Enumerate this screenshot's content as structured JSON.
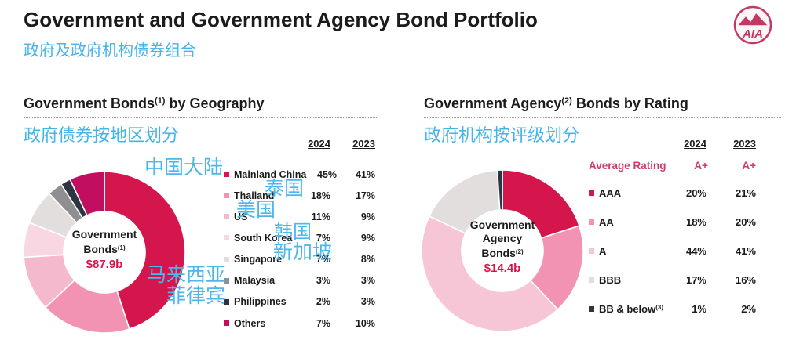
{
  "page": {
    "title": "Government and Government Agency Bond Portfolio",
    "subtitle_zh": "政府及政府机构债券组合",
    "logo_text": "AIA"
  },
  "colors": {
    "accent_red": "#d4164c",
    "annotation_blue": "#4db7eb",
    "subtitle_blue": "#45b4e8",
    "rating_rose": "#cf3a67"
  },
  "panels": {
    "left": {
      "title_pre": "Government Bonds",
      "title_sup": "(1)",
      "title_post": " by Geography",
      "subtitle_zh": "政府债券按地区划分"
    },
    "right": {
      "title_pre": "Government Agency",
      "title_sup": "(2)",
      "title_post": " Bonds by Rating",
      "subtitle_zh": "政府机构按评级划分"
    }
  },
  "chart_data": [
    {
      "type": "pie",
      "subtype": "donut",
      "title": "Government Bonds(1) by Geography",
      "title_zh": "政府债券按地区划分",
      "center_lines": [
        {
          "t": "Government"
        },
        {
          "t": "Bonds",
          "sup": "(1)"
        }
      ],
      "center_value": "$87.9b",
      "columns": [
        "2024",
        "2023"
      ],
      "categories": [
        "Mainland China",
        "Thailand",
        "US",
        "South Korea",
        "Singapore",
        "Malaysia",
        "Philippines",
        "Others"
      ],
      "category_sups": [
        null,
        null,
        null,
        null,
        null,
        null,
        null,
        null
      ],
      "series": [
        {
          "name": "2024",
          "values": [
            45,
            18,
            11,
            7,
            7,
            3,
            2,
            7
          ]
        },
        {
          "name": "2023",
          "values": [
            41,
            17,
            9,
            9,
            8,
            3,
            3,
            10
          ]
        }
      ],
      "donut_series": "2024",
      "value_suffix": "%",
      "colors": [
        "#d4164c",
        "#f293b4",
        "#f5b9cd",
        "#f9d7e2",
        "#e2dedd",
        "#8f8f92",
        "#2e3540",
        "#c10e60"
      ],
      "legend_position": "right"
    },
    {
      "type": "pie",
      "subtype": "donut",
      "title": "Government Agency(2) Bonds by Rating",
      "title_zh": "政府机构按评级划分",
      "center_lines": [
        {
          "t": "Government"
        },
        {
          "t": "Agency"
        },
        {
          "t": "Bonds",
          "sup": "(2)"
        }
      ],
      "center_value": "$14.4b",
      "columns": [
        "2024",
        "2023"
      ],
      "average_rating": {
        "label": "Average Rating",
        "v2024": "A+",
        "v2023": "A+"
      },
      "categories": [
        "AAA",
        "AA",
        "A",
        "BBB",
        "BB & below"
      ],
      "category_sups": [
        null,
        null,
        null,
        null,
        "(3)"
      ],
      "series": [
        {
          "name": "2024",
          "values": [
            20,
            18,
            44,
            17,
            1
          ]
        },
        {
          "name": "2023",
          "values": [
            21,
            20,
            41,
            16,
            2
          ]
        }
      ],
      "donut_series": "2024",
      "value_suffix": "%",
      "colors": [
        "#d4164c",
        "#f293b4",
        "#f7c6d6",
        "#e2dedd",
        "#2e3540"
      ],
      "legend_position": "right"
    }
  ],
  "annotations": [
    {
      "text": "中国大陆"
    },
    {
      "text": "泰国"
    },
    {
      "text": "美国"
    },
    {
      "text": "韩国"
    },
    {
      "text": "新加坡"
    },
    {
      "text": "马来西亚"
    },
    {
      "text": "菲律宾"
    }
  ]
}
